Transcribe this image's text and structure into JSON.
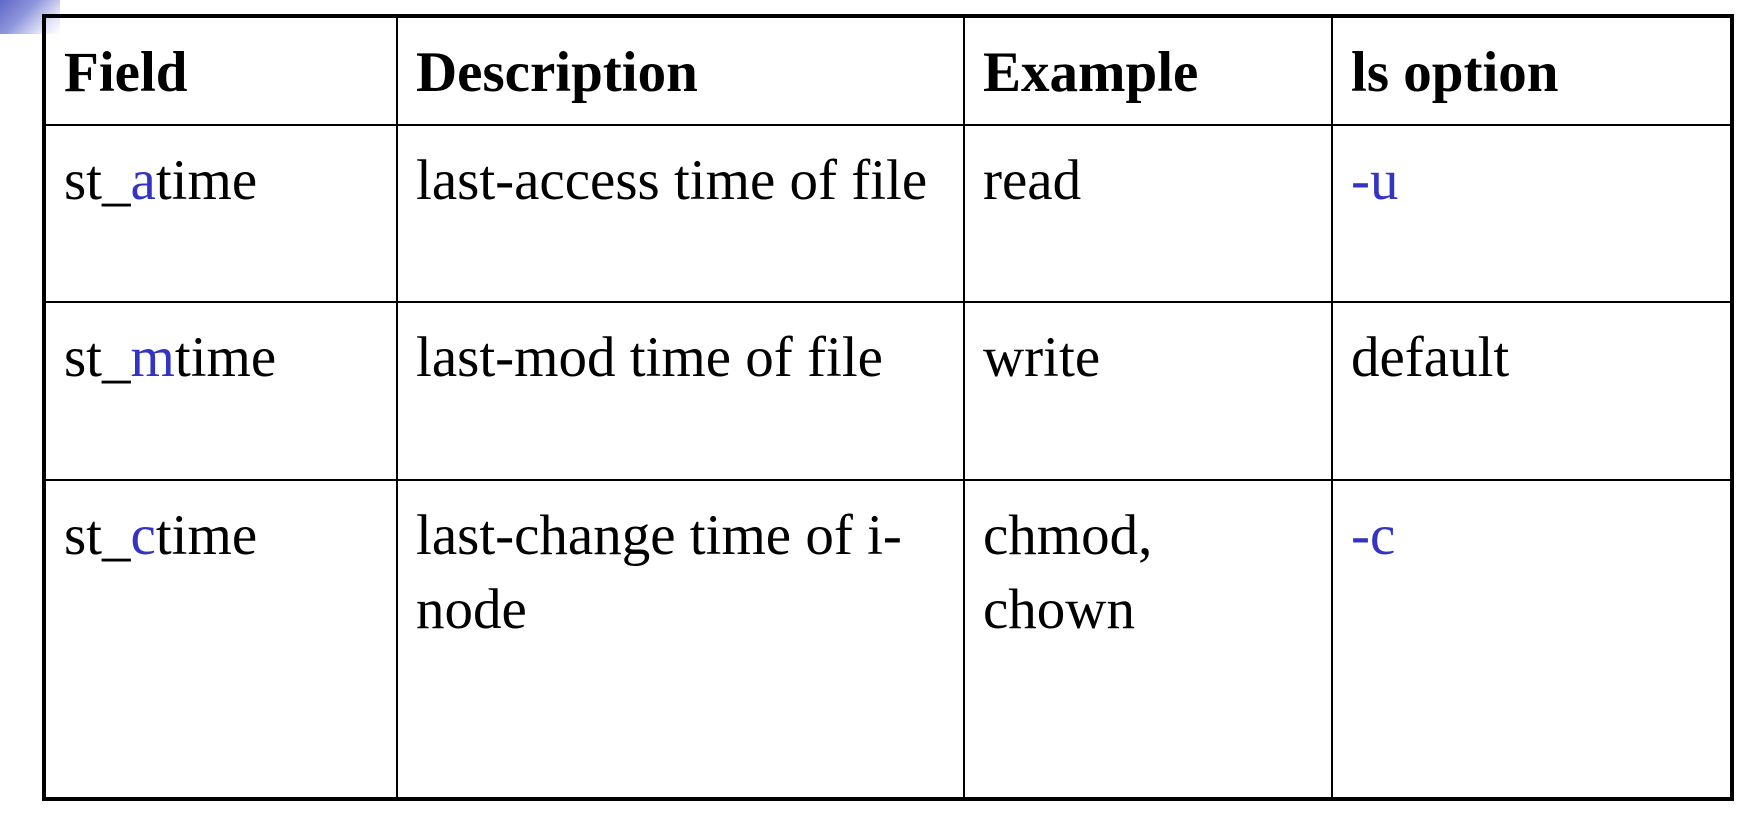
{
  "table": {
    "headers": [
      "Field",
      "Description",
      "Example",
      "ls option"
    ],
    "rows": [
      {
        "field": {
          "prefix": "st_",
          "accent": "a",
          "suffix": "time"
        },
        "description": "last-access time of file",
        "example": "read",
        "ls_option": "-u",
        "ls_option_highlighted": true
      },
      {
        "field": {
          "prefix": "st_",
          "accent": "m",
          "suffix": "time"
        },
        "description": "last-mod time of file",
        "example": "write",
        "ls_option": "default",
        "ls_option_highlighted": false
      },
      {
        "field": {
          "prefix": "st_",
          "accent": "c",
          "suffix": "time"
        },
        "description": "last-change time of i-node",
        "example": "chmod, chown",
        "ls_option": "-c",
        "ls_option_highlighted": true
      }
    ]
  },
  "colors": {
    "accent_text": "#3434c4",
    "border": "#000000",
    "background": "#ffffff"
  }
}
